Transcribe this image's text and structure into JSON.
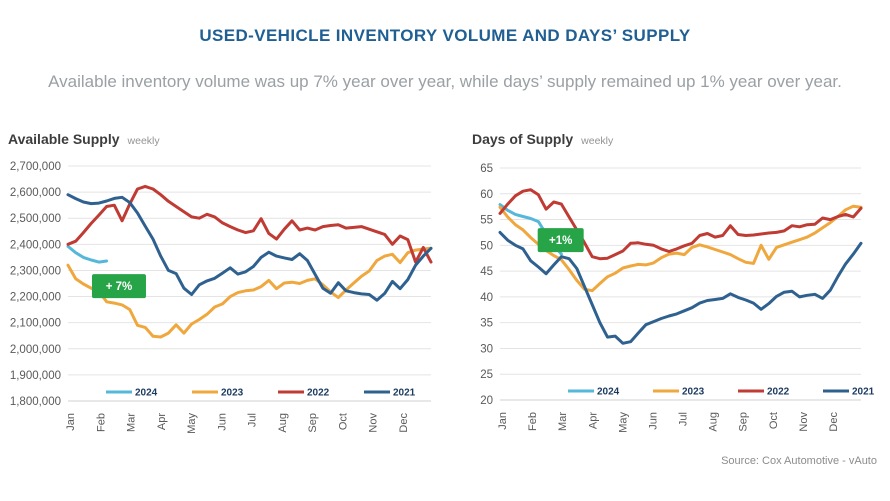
{
  "header": {
    "title": "USED-VEHICLE INVENTORY VOLUME AND DAYS’ SUPPLY",
    "subtitle": "Available inventory volume was up 7% year over year, while days’ supply remained up 1% year over year."
  },
  "source": "Source: Cox Automotive - vAuto",
  "colors": {
    "title_blue": "#1f5f94",
    "subtitle_gray": "#9aa0a4",
    "badge_green": "#27a448",
    "grid_gray": "#e4e4e4",
    "axis_text": "#5a5a5a",
    "legend_text": "#1b3a5f",
    "series_2024": "#55b7d9",
    "series_2023": "#efa73e",
    "series_2022": "#bf3b33",
    "series_2021": "#2f6190"
  },
  "chart_data": [
    {
      "type": "line",
      "title": "Available Supply",
      "unit": "weekly",
      "x_categories": [
        "Jan",
        "Feb",
        "Mar",
        "Apr",
        "May",
        "Jun",
        "Jul",
        "Aug",
        "Sep",
        "Oct",
        "Nov",
        "Dec"
      ],
      "ylim": [
        1800000,
        2700000
      ],
      "y_ticks": [
        "2,700,000",
        "2,600,000",
        "2,500,000",
        "2,400,000",
        "2,300,000",
        "2,200,000",
        "2,100,000",
        "2,000,000",
        "1,900,000",
        "1,800,000"
      ],
      "grid": true,
      "legend_position": "bottom-inside",
      "annotation": {
        "text": "+ 7%",
        "week": 6.6,
        "value": 2240000
      },
      "series": [
        {
          "name": "2024",
          "color": "#55b7d9",
          "values": [
            2392000,
            2368000,
            2350000,
            2340000,
            2332000,
            2336000
          ]
        },
        {
          "name": "2023",
          "color": "#efa73e",
          "values": [
            2320000,
            2268000,
            2248000,
            2232000,
            2220000,
            2180000,
            2175000,
            2168000,
            2150000,
            2090000,
            2082000,
            2048000,
            2045000,
            2060000,
            2092000,
            2060000,
            2095000,
            2112000,
            2132000,
            2160000,
            2172000,
            2200000,
            2215000,
            2222000,
            2225000,
            2238000,
            2262000,
            2230000,
            2252000,
            2255000,
            2250000,
            2262000,
            2268000,
            2245000,
            2218000,
            2196000,
            2225000,
            2252000,
            2278000,
            2298000,
            2338000,
            2355000,
            2362000,
            2330000,
            2368000,
            2378000,
            2382000,
            2385000
          ]
        },
        {
          "name": "2022",
          "color": "#bf3b33",
          "values": [
            2400000,
            2412000,
            2445000,
            2480000,
            2512000,
            2545000,
            2550000,
            2490000,
            2555000,
            2612000,
            2622000,
            2612000,
            2590000,
            2565000,
            2545000,
            2525000,
            2505000,
            2500000,
            2515000,
            2505000,
            2482000,
            2468000,
            2455000,
            2445000,
            2452000,
            2498000,
            2442000,
            2420000,
            2458000,
            2490000,
            2455000,
            2462000,
            2455000,
            2468000,
            2472000,
            2475000,
            2462000,
            2465000,
            2468000,
            2458000,
            2448000,
            2438000,
            2400000,
            2432000,
            2418000,
            2332000,
            2388000,
            2332000
          ]
        },
        {
          "name": "2021",
          "color": "#2f6190",
          "values": [
            2590000,
            2575000,
            2562000,
            2556000,
            2558000,
            2566000,
            2576000,
            2580000,
            2560000,
            2520000,
            2470000,
            2420000,
            2355000,
            2300000,
            2288000,
            2232000,
            2208000,
            2245000,
            2260000,
            2270000,
            2290000,
            2310000,
            2286000,
            2295000,
            2315000,
            2350000,
            2370000,
            2355000,
            2348000,
            2342000,
            2364000,
            2338000,
            2285000,
            2232000,
            2213000,
            2253000,
            2222000,
            2215000,
            2210000,
            2208000,
            2186000,
            2212000,
            2258000,
            2230000,
            2265000,
            2320000,
            2355000,
            2385000
          ]
        }
      ]
    },
    {
      "type": "line",
      "title": "Days of Supply",
      "unit": "weekly",
      "x_categories": [
        "Jan",
        "Feb",
        "Mar",
        "Apr",
        "May",
        "Jun",
        "Jul",
        "Aug",
        "Sep",
        "Oct",
        "Nov",
        "Dec"
      ],
      "ylim": [
        20,
        65
      ],
      "y_ticks": [
        "65",
        "60",
        "55",
        "50",
        "45",
        "40",
        "35",
        "30",
        "25",
        "20"
      ],
      "grid": true,
      "legend_position": "bottom-inside",
      "annotation": {
        "text": "+1%",
        "week": 7.9,
        "value": 51
      },
      "series": [
        {
          "name": "2024",
          "color": "#55b7d9",
          "values": [
            57.9,
            56.8,
            56.0,
            55.6,
            55.2,
            54.6,
            52.2,
            50.0,
            48.3
          ]
        },
        {
          "name": "2023",
          "color": "#efa73e",
          "values": [
            57.4,
            55.5,
            54.0,
            53.0,
            51.5,
            50.2,
            49.0,
            48.0,
            47.2,
            45.3,
            43.2,
            41.5,
            41.2,
            42.6,
            43.9,
            44.6,
            45.6,
            46.0,
            46.3,
            46.2,
            46.6,
            47.6,
            48.3,
            48.5,
            48.2,
            49.6,
            50.1,
            49.7,
            49.2,
            48.7,
            48.2,
            47.4,
            46.7,
            46.5,
            50.0,
            47.3,
            49.6,
            50.1,
            50.6,
            51.1,
            51.6,
            52.4,
            53.4,
            54.4,
            55.6,
            56.9,
            57.6,
            57.4
          ]
        },
        {
          "name": "2022",
          "color": "#bf3b33",
          "values": [
            56.2,
            58.0,
            59.6,
            60.5,
            60.8,
            59.8,
            57.0,
            58.4,
            58.0,
            55.5,
            53.0,
            50.5,
            47.8,
            47.4,
            47.5,
            48.2,
            48.9,
            50.4,
            50.5,
            50.2,
            50.0,
            49.3,
            48.8,
            49.3,
            49.9,
            50.4,
            51.9,
            52.3,
            51.6,
            51.9,
            53.8,
            52.1,
            51.9,
            52.0,
            52.2,
            52.4,
            52.5,
            52.8,
            53.8,
            53.6,
            54.0,
            54.1,
            55.3,
            55.0,
            55.6,
            56.0,
            55.5,
            57.2
          ]
        },
        {
          "name": "2021",
          "color": "#2f6190",
          "values": [
            52.5,
            51.0,
            50.0,
            49.3,
            47.0,
            45.8,
            44.5,
            46.2,
            47.8,
            47.4,
            45.5,
            42.0,
            38.5,
            35.0,
            32.2,
            32.4,
            31.0,
            31.3,
            33.0,
            34.6,
            35.2,
            35.8,
            36.3,
            36.7,
            37.3,
            37.9,
            38.8,
            39.3,
            39.5,
            39.7,
            40.6,
            39.9,
            39.4,
            38.8,
            37.6,
            38.7,
            40.1,
            40.9,
            41.1,
            40.0,
            40.3,
            40.5,
            39.7,
            41.3,
            44.0,
            46.4,
            48.3,
            50.4
          ]
        }
      ]
    }
  ]
}
